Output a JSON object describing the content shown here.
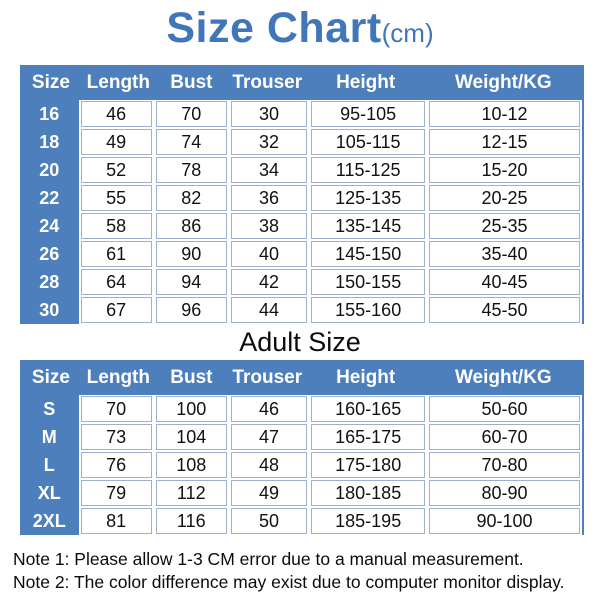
{
  "title": {
    "main": "Size Chart",
    "unit": "(cm)"
  },
  "adult_heading": "Adult Size",
  "notes": [
    "Note 1: Please allow 1-3 CM error due to a manual measurement.",
    "Note 2: The color difference may exist due to computer monitor display."
  ],
  "colors": {
    "accent_blue": "#4d7fbd",
    "title_blue": "#4177b8",
    "cell_border": "#9db1cd",
    "text": "#111111"
  },
  "chart_data": [
    {
      "type": "table",
      "title": "Size Chart(cm)",
      "columns": [
        "Size",
        "Length",
        "Bust",
        "Trouser",
        "Height",
        "Weight/KG"
      ],
      "rows": [
        [
          "16",
          "46",
          "70",
          "30",
          "95-105",
          "10-12"
        ],
        [
          "18",
          "49",
          "74",
          "32",
          "105-115",
          "12-15"
        ],
        [
          "20",
          "52",
          "78",
          "34",
          "115-125",
          "15-20"
        ],
        [
          "22",
          "55",
          "82",
          "36",
          "125-135",
          "20-25"
        ],
        [
          "24",
          "58",
          "86",
          "38",
          "135-145",
          "25-35"
        ],
        [
          "26",
          "61",
          "90",
          "40",
          "145-150",
          "35-40"
        ],
        [
          "28",
          "64",
          "94",
          "42",
          "150-155",
          "40-45"
        ],
        [
          "30",
          "67",
          "96",
          "44",
          "155-160",
          "45-50"
        ]
      ]
    },
    {
      "type": "table",
      "title": "Adult Size",
      "columns": [
        "Size",
        "Length",
        "Bust",
        "Trouser",
        "Height",
        "Weight/KG"
      ],
      "rows": [
        [
          "S",
          "70",
          "100",
          "46",
          "160-165",
          "50-60"
        ],
        [
          "M",
          "73",
          "104",
          "47",
          "165-175",
          "60-70"
        ],
        [
          "L",
          "76",
          "108",
          "48",
          "175-180",
          "70-80"
        ],
        [
          "XL",
          "79",
          "112",
          "49",
          "180-185",
          "80-90"
        ],
        [
          "2XL",
          "81",
          "116",
          "50",
          "185-195",
          "90-100"
        ]
      ]
    }
  ]
}
